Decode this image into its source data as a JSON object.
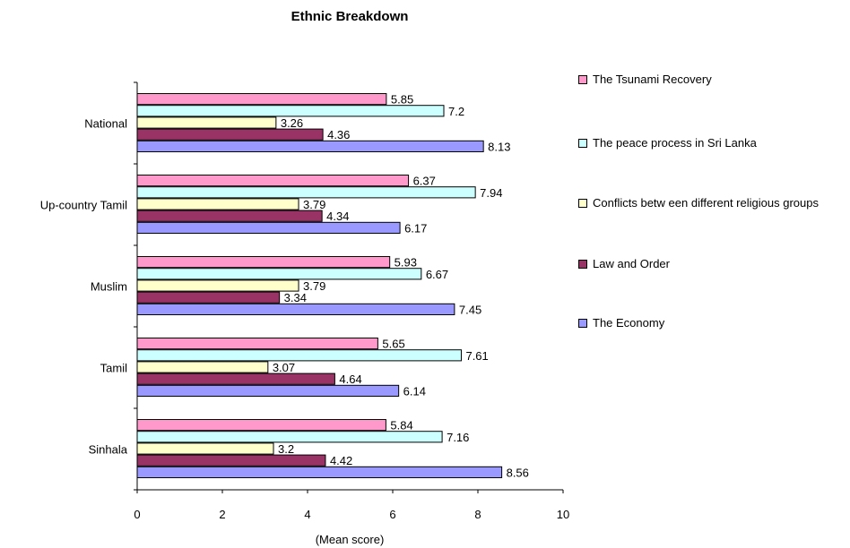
{
  "chart_data": {
    "type": "bar",
    "orientation": "horizontal",
    "title": "Ethnic Breakdown",
    "xlabel": "(Mean score)",
    "ylabel": "",
    "xlim": [
      0,
      10
    ],
    "xticks": [
      "0",
      "2",
      "4",
      "6",
      "8",
      "10"
    ],
    "grid": false,
    "legend_position": "right",
    "categories": [
      "National",
      "Up-country Tamil",
      "Muslim",
      "Tamil",
      "Sinhala"
    ],
    "series": [
      {
        "name": "The Tsunami Recovery",
        "color": "#FF99CC",
        "values": [
          5.85,
          6.37,
          5.93,
          5.65,
          5.84
        ],
        "labels": [
          "5.85",
          "6.37",
          "5.93",
          "5.65",
          "5.84"
        ]
      },
      {
        "name": "The peace process in Sri Lanka",
        "color": "#CCFFFF",
        "values": [
          7.2,
          7.94,
          6.67,
          7.61,
          7.16
        ],
        "labels": [
          "7.2",
          "7.94",
          "6.67",
          "7.61",
          "7.16"
        ]
      },
      {
        "name": "Conflicts betw een different religious groups",
        "color": "#FFFFCC",
        "values": [
          3.26,
          3.79,
          3.79,
          3.07,
          3.2
        ],
        "labels": [
          "3.26",
          "3.79",
          "3.79",
          "3.07",
          "3.2"
        ]
      },
      {
        "name": "Law  and Order",
        "color": "#993366",
        "values": [
          4.36,
          4.34,
          3.34,
          4.64,
          4.42
        ],
        "labels": [
          "4.36",
          "4.34",
          "3.34",
          "4.64",
          "4.42"
        ]
      },
      {
        "name": "The Economy",
        "color": "#9999FF",
        "values": [
          8.13,
          6.17,
          7.45,
          6.14,
          8.56
        ],
        "labels": [
          "8.13",
          "6.17",
          "7.45",
          "6.14",
          "8.56"
        ]
      }
    ]
  }
}
